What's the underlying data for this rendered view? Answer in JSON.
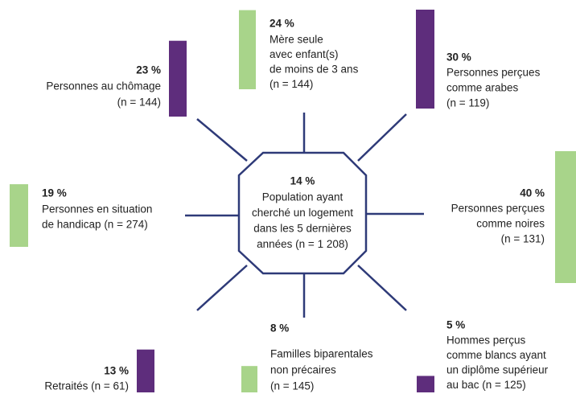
{
  "center": {
    "value_label": "14 %",
    "lines": [
      "Population ayant",
      "cherché un logement",
      "dans les 5 dernières",
      "années (n = 1 208)"
    ]
  },
  "items": [
    {
      "value": 23,
      "value_label": "23 %",
      "lines": [
        "Personnes au chômage",
        "(n = 144)"
      ],
      "color": "#5e2d7c"
    },
    {
      "value": 24,
      "value_label": "24 %",
      "lines": [
        "Mère seule",
        "avec enfant(s)",
        "de moins de 3 ans",
        "(n = 144)"
      ],
      "color": "#a8d48a"
    },
    {
      "value": 30,
      "value_label": "30 %",
      "lines": [
        "Personnes perçues",
        "comme arabes",
        "(n = 119)"
      ],
      "color": "#5e2d7c"
    },
    {
      "value": 19,
      "value_label": "19 %",
      "lines": [
        "Personnes en situation",
        "de handicap (n = 274)"
      ],
      "color": "#a8d48a"
    },
    {
      "value": 40,
      "value_label": "40 %",
      "lines": [
        "Personnes perçues",
        "comme noires",
        "(n = 131)"
      ],
      "color": "#a8d48a"
    },
    {
      "value": 13,
      "value_label": "13 %",
      "lines": [
        "Retraités (n = 61)"
      ],
      "color": "#5e2d7c"
    },
    {
      "value": 8,
      "value_label": "8 %",
      "lines": [
        "Familles biparentales",
        "non précaires",
        "(n = 145)"
      ],
      "color": "#a8d48a"
    },
    {
      "value": 5,
      "value_label": "5 %",
      "lines": [
        "Hommes perçus",
        "comme blancs ayant",
        "un diplôme supérieur",
        "au bac (n = 125)"
      ],
      "color": "#5e2d7c"
    }
  ]
}
